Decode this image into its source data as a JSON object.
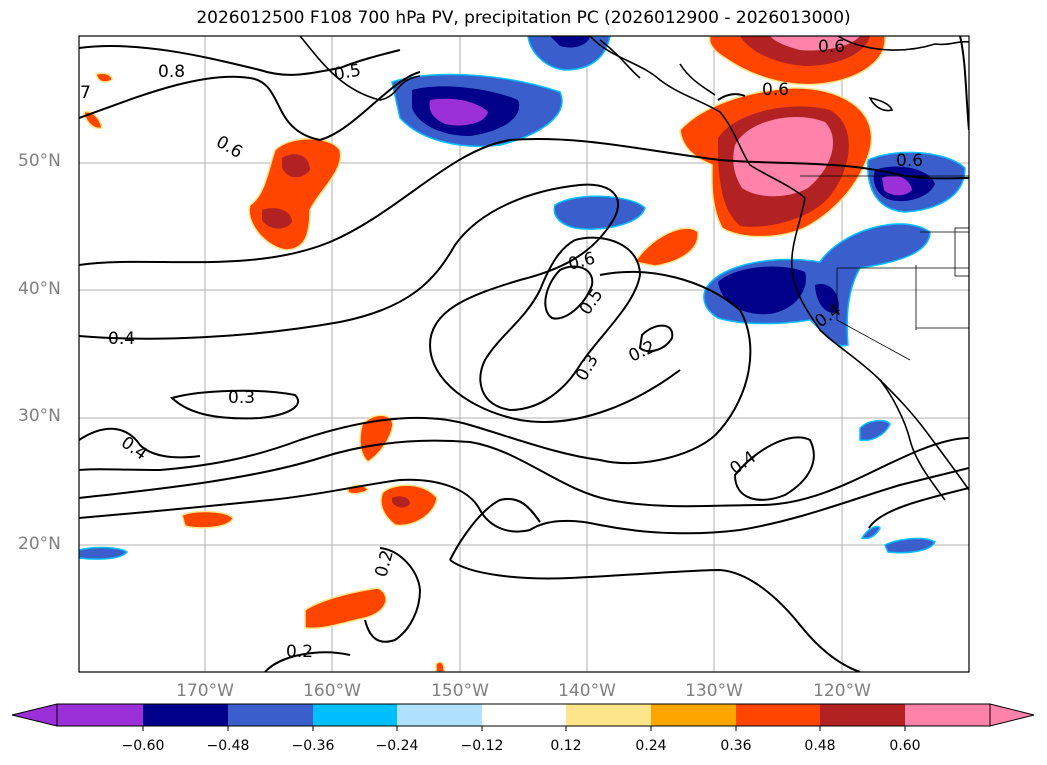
{
  "title": "2026012500 F108 700 hPa PV, precipitation PC (2026012900 - 2026013000)",
  "lat_labels": [
    "50°N",
    "40°N",
    "30°N",
    "20°N"
  ],
  "lon_labels": [
    "170°W",
    "160°W",
    "150°W",
    "140°W",
    "130°W",
    "120°W"
  ],
  "colorbar": {
    "ticks": [
      "−0.60",
      "−0.48",
      "−0.36",
      "−0.24",
      "−0.12",
      "0.12",
      "0.24",
      "0.36",
      "0.48",
      "0.60"
    ],
    "colors": [
      "#9b30d8",
      "#00008b",
      "#3a5fcd",
      "#00bfff",
      "#b0e2ff",
      "#ffffff",
      "#fce58a",
      "#ffa500",
      "#ff4500",
      "#b22222",
      "#ff82ab"
    ]
  },
  "contour_labels": [
    "0.8",
    "0.5",
    "7",
    "0.6",
    "0.6",
    "0.6",
    "0.6",
    "0.6",
    "0.5",
    "0.2",
    "0.4",
    "0.3",
    "0.4",
    "0.3",
    "0.4",
    "0.4",
    "0.2",
    "0.2"
  ]
}
